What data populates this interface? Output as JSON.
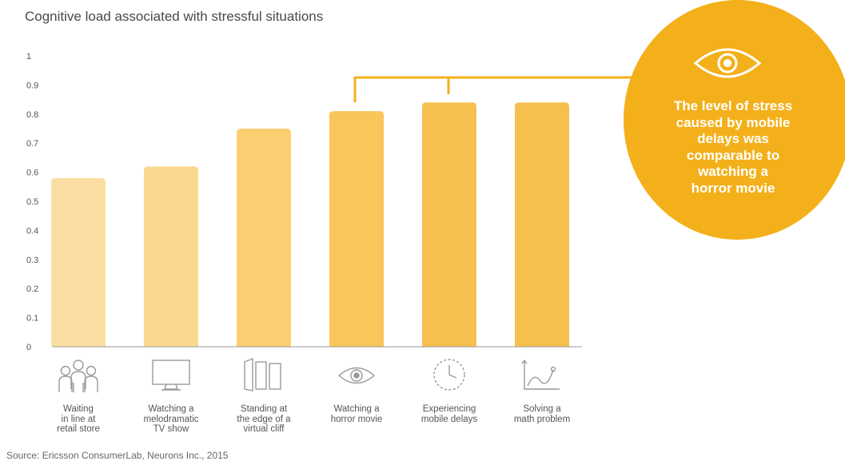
{
  "chart_data": {
    "type": "bar",
    "title": "Cognitive load associated with stressful situations",
    "categories": [
      "Waiting\nin line at\nretail store",
      "Watching a\nmelodramatic\nTV show",
      "Standing at\nthe edge of a\nvirtual cliff",
      "Watching a\nhorror movie",
      "Experiencing\nmobile delays",
      "Solving a\nmath problem"
    ],
    "values": [
      0.58,
      0.62,
      0.75,
      0.81,
      0.84,
      0.84
    ],
    "ylim": [
      0,
      1
    ],
    "yticks": [
      "0",
      "0.1",
      "0.2",
      "0.3",
      "0.4",
      "0.5",
      "0.6",
      "0.7",
      "0.8",
      "0.9",
      "1"
    ],
    "grid": false,
    "xlabel": "",
    "ylabel": "",
    "bar_colors": [
      "#fbdfa2",
      "#fbd88f",
      "#f9cf72",
      "#f8c65a",
      "#f6c04f",
      "#f6c04f"
    ],
    "category_icons": [
      "people-icon",
      "tv-icon",
      "cliff-panels-icon",
      "eye-icon",
      "clock-icon",
      "graph-icon"
    ]
  },
  "callout": {
    "text": "The level of stress\ncaused by mobile\ndelays was\ncomparable to\nwatching a\nhorror movie",
    "icon": "eye-icon",
    "color": "#f4b01b"
  },
  "source": "Source: Ericsson ConsumerLab, Neurons Inc., 2015"
}
